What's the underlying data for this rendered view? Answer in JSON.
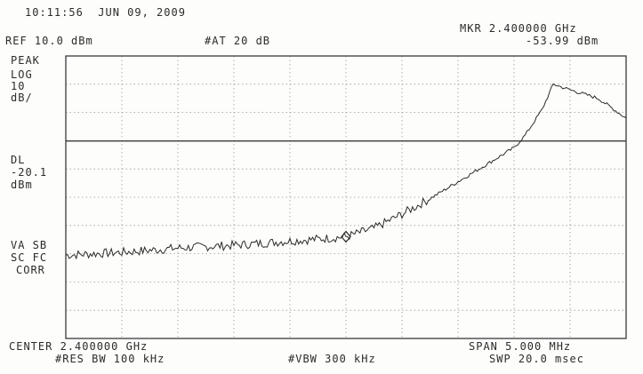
{
  "header": {
    "timestamp": "10:11:56  JUN 09, 2009",
    "ref_level": "REF 10.0 dBm",
    "attenuation": "#AT 20 dB",
    "marker_freq": "MKR 2.400000 GHz",
    "marker_level": "-53.99 dBm"
  },
  "left_labels": {
    "mode": "PEAK",
    "scale_1": "LOG",
    "scale_2": "10",
    "scale_3": "dB/",
    "dl_1": "DL",
    "dl_2": "-20.1",
    "dl_3": "dBm",
    "corr_1": "VA SB",
    "corr_2": "SC FC",
    "corr_3": "CORR"
  },
  "footer": {
    "center": "CENTER 2.400000 GHz",
    "res_bw": "#RES BW 100 kHz",
    "vbw": "#VBW 300 kHz",
    "span": "SPAN 5.000 MHz",
    "sweep": "SWP 20.0 msec"
  },
  "colors": {
    "ink": "#2b2b2b",
    "grid": "#9a9a9a",
    "paper": "#fdfdfb"
  },
  "chart_data": {
    "type": "line",
    "title": "",
    "xlabel": "",
    "ylabel": "",
    "x_unit": "MHz",
    "y_unit": "dBm",
    "xlim": [
      2397.5,
      2402.5
    ],
    "ylim": [
      -90,
      10
    ],
    "grid": true,
    "display_line": -20.1,
    "marker": {
      "x": 2400.0,
      "y": -53.99
    },
    "series": [
      {
        "x": [
          2397.5,
          2397.75,
          2398.0,
          2398.25,
          2398.5,
          2398.75,
          2399.0,
          2399.25,
          2399.5,
          2399.75,
          2400.0,
          2400.25,
          2400.5,
          2400.75,
          2401.0,
          2401.25,
          2401.5,
          2401.6,
          2401.75,
          2401.85,
          2402.0,
          2402.25,
          2402.5
        ],
        "y": [
          -60.5,
          -60.0,
          -59.5,
          -58.8,
          -58.0,
          -57.5,
          -57.0,
          -56.3,
          -55.5,
          -54.8,
          -54.0,
          -51.0,
          -46.0,
          -40.5,
          -34.5,
          -28.5,
          -22.5,
          -18.0,
          -9.0,
          0.0,
          -2.0,
          -5.0,
          -12.0
        ]
      }
    ]
  }
}
